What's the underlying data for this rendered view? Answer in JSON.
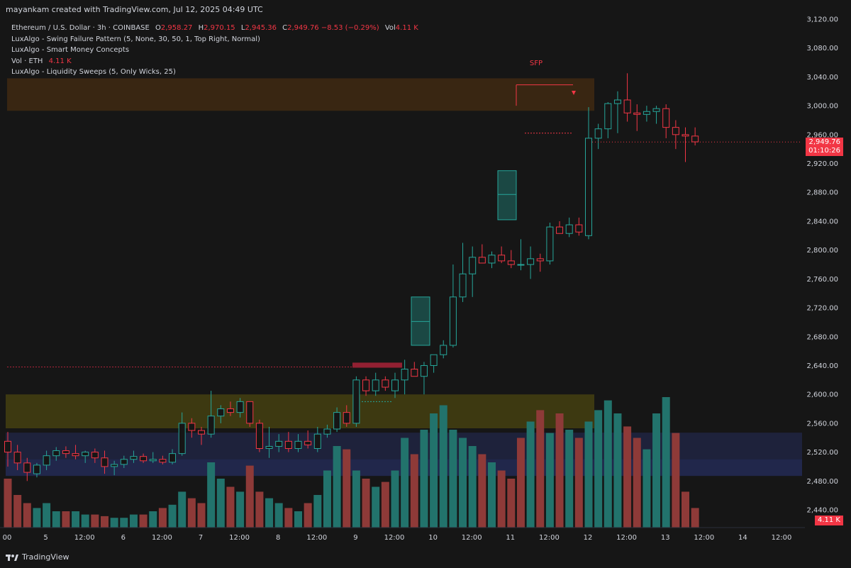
{
  "header": {
    "attribution": "mayankam created with TradingView.com, Jul 12, 2025 04:49 UTC"
  },
  "legend": {
    "symbol": "Ethereum / U.S. Dollar · 3h · COINBASE",
    "o_label": "O",
    "o_value": "2,958.27",
    "h_label": "H",
    "h_value": "2,970.15",
    "l_label": "L",
    "l_value": "2,945.36",
    "c_label": "C",
    "c_value": "2,949.76",
    "change": "−8.53 (−0.29%)",
    "vol_label": "Vol",
    "vol_value": "4.11 K",
    "indicator1": "LuxAlgo - Swing Failure Pattern (5, None, 30, 50, 1, Top Right, Normal)",
    "indicator2": "LuxAlgo - Smart Money Concepts",
    "indicator3_label": "Vol · ETH",
    "indicator3_value": "4.11 K",
    "indicator4": "LuxAlgo - Liquidity Sweeps (5, Only Wicks, 25)"
  },
  "price_tag": {
    "price": "2,949.76",
    "countdown": "01:10:26"
  },
  "volume_tag": "4.11 K",
  "footer": {
    "brand": "TradingView"
  },
  "colors": {
    "background": "#161616",
    "up": "#26a69a",
    "down": "#f23645",
    "text": "#d1d4dc",
    "vol_up": "#22736c",
    "vol_down": "#8e3a38"
  },
  "chart_data": {
    "type": "candlestick",
    "title": "Ethereum / U.S. Dollar · 3h · COINBASE",
    "y_ticks": [
      "3,120.00",
      "3,080.00",
      "3,040.00",
      "3,000.00",
      "2,960.00",
      "2,920.00",
      "2,880.00",
      "2,840.00",
      "2,800.00",
      "2,760.00",
      "2,720.00",
      "2,680.00",
      "2,640.00",
      "2,600.00",
      "2,560.00",
      "2,520.00",
      "2,480.00",
      "2,440.00"
    ],
    "ylim": [
      2420,
      3130
    ],
    "x_ticks": [
      {
        "label": "00",
        "i": 0
      },
      {
        "label": "5",
        "i": 4
      },
      {
        "label": "12:00",
        "i": 8
      },
      {
        "label": "6",
        "i": 12
      },
      {
        "label": "12:00",
        "i": 16
      },
      {
        "label": "7",
        "i": 20
      },
      {
        "label": "12:00",
        "i": 24
      },
      {
        "label": "8",
        "i": 28
      },
      {
        "label": "12:00",
        "i": 32
      },
      {
        "label": "9",
        "i": 36
      },
      {
        "label": "12:00",
        "i": 40
      },
      {
        "label": "10",
        "i": 44
      },
      {
        "label": "12:00",
        "i": 48
      },
      {
        "label": "11",
        "i": 52
      },
      {
        "label": "12:00",
        "i": 56
      },
      {
        "label": "12",
        "i": 60
      },
      {
        "label": "12:00",
        "i": 64
      },
      {
        "label": "13",
        "i": 68
      },
      {
        "label": "12:00",
        "i": 72
      },
      {
        "label": "14",
        "i": 76
      },
      {
        "label": "12:00",
        "i": 80
      }
    ],
    "candles": [
      [
        2535,
        2548,
        2500,
        2520
      ],
      [
        2520,
        2530,
        2495,
        2505
      ],
      [
        2505,
        2512,
        2480,
        2492
      ],
      [
        2490,
        2505,
        2485,
        2502
      ],
      [
        2502,
        2522,
        2495,
        2515
      ],
      [
        2515,
        2527,
        2508,
        2522
      ],
      [
        2522,
        2528,
        2512,
        2518
      ],
      [
        2518,
        2530,
        2510,
        2515
      ],
      [
        2515,
        2522,
        2505,
        2520
      ],
      [
        2520,
        2525,
        2505,
        2512
      ],
      [
        2512,
        2522,
        2490,
        2500
      ],
      [
        2500,
        2508,
        2488,
        2503
      ],
      [
        2503,
        2515,
        2498,
        2510
      ],
      [
        2510,
        2522,
        2505,
        2514
      ],
      [
        2514,
        2518,
        2505,
        2508
      ],
      [
        2508,
        2520,
        2505,
        2510
      ],
      [
        2510,
        2515,
        2503,
        2506
      ],
      [
        2506,
        2524,
        2503,
        2518
      ],
      [
        2518,
        2575,
        2515,
        2560
      ],
      [
        2560,
        2567,
        2540,
        2550
      ],
      [
        2550,
        2555,
        2530,
        2545
      ],
      [
        2545,
        2605,
        2540,
        2570
      ],
      [
        2570,
        2585,
        2560,
        2580
      ],
      [
        2580,
        2590,
        2570,
        2575
      ],
      [
        2575,
        2595,
        2568,
        2590
      ],
      [
        2590,
        2590,
        2555,
        2560
      ],
      [
        2560,
        2565,
        2520,
        2525
      ],
      [
        2525,
        2555,
        2512,
        2528
      ],
      [
        2528,
        2545,
        2520,
        2535
      ],
      [
        2535,
        2548,
        2520,
        2525
      ],
      [
        2525,
        2545,
        2520,
        2535
      ],
      [
        2535,
        2550,
        2525,
        2530
      ],
      [
        2525,
        2555,
        2520,
        2545
      ],
      [
        2545,
        2558,
        2540,
        2552
      ],
      [
        2552,
        2582,
        2548,
        2575
      ],
      [
        2575,
        2585,
        2555,
        2560
      ],
      [
        2560,
        2625,
        2555,
        2620
      ],
      [
        2620,
        2625,
        2598,
        2605
      ],
      [
        2605,
        2630,
        2598,
        2620
      ],
      [
        2620,
        2625,
        2605,
        2610
      ],
      [
        2605,
        2630,
        2595,
        2620
      ],
      [
        2620,
        2648,
        2600,
        2635
      ],
      [
        2635,
        2645,
        2625,
        2625
      ],
      [
        2625,
        2645,
        2600,
        2640
      ],
      [
        2640,
        2650,
        2630,
        2655
      ],
      [
        2655,
        2675,
        2650,
        2668
      ],
      [
        2668,
        2780,
        2665,
        2735
      ],
      [
        2735,
        2810,
        2728,
        2767
      ],
      [
        2767,
        2805,
        2735,
        2790
      ],
      [
        2790,
        2808,
        2785,
        2782
      ],
      [
        2782,
        2798,
        2775,
        2793
      ],
      [
        2793,
        2805,
        2782,
        2785
      ],
      [
        2785,
        2800,
        2775,
        2780
      ],
      [
        2780,
        2815,
        2772,
        2780
      ],
      [
        2780,
        2805,
        2760,
        2788
      ],
      [
        2788,
        2795,
        2770,
        2785
      ],
      [
        2785,
        2838,
        2780,
        2832
      ],
      [
        2832,
        2840,
        2825,
        2823
      ],
      [
        2823,
        2845,
        2818,
        2835
      ],
      [
        2835,
        2845,
        2820,
        2825
      ],
      [
        2820,
        2998,
        2815,
        2955
      ],
      [
        2955,
        2975,
        2940,
        2968
      ],
      [
        2968,
        3005,
        2955,
        3003
      ],
      [
        3003,
        3020,
        2962,
        3008
      ],
      [
        3008,
        3045,
        2978,
        2990
      ],
      [
        2990,
        3002,
        2965,
        2988
      ],
      [
        2988,
        3000,
        2978,
        2992
      ],
      [
        2992,
        3000,
        2975,
        2996
      ],
      [
        2996,
        3002,
        2955,
        2970
      ],
      [
        2970,
        2980,
        2940,
        2960
      ],
      [
        2960,
        2970,
        2922,
        2958
      ],
      [
        2958,
        2970,
        2945,
        2950
      ]
    ],
    "volume": [
      30,
      20,
      15,
      12,
      15,
      10,
      10,
      10,
      8,
      8,
      7,
      6,
      6,
      8,
      8,
      10,
      12,
      14,
      22,
      18,
      15,
      40,
      30,
      25,
      22,
      38,
      22,
      18,
      15,
      12,
      10,
      15,
      20,
      35,
      50,
      48,
      35,
      30,
      25,
      28,
      35,
      55,
      45,
      60,
      70,
      75,
      60,
      55,
      50,
      45,
      40,
      35,
      30,
      55,
      65,
      72,
      58,
      70,
      60,
      55,
      65,
      72,
      78,
      70,
      62,
      55,
      48,
      70,
      80,
      58,
      22,
      12
    ],
    "volume_up": [
      false,
      false,
      false,
      true,
      true,
      true,
      false,
      true,
      true,
      false,
      false,
      true,
      true,
      true,
      false,
      true,
      false,
      true,
      true,
      false,
      false,
      true,
      true,
      false,
      true,
      false,
      false,
      true,
      true,
      false,
      true,
      false,
      true,
      true,
      true,
      false,
      true,
      false,
      true,
      false,
      true,
      true,
      false,
      true,
      true,
      true,
      true,
      true,
      true,
      false,
      true,
      false,
      false,
      false,
      true,
      false,
      true,
      false,
      true,
      false,
      true,
      true,
      true,
      true,
      false,
      false,
      true,
      true,
      true,
      false,
      false,
      false
    ],
    "annotations": [
      "SFP"
    ]
  }
}
